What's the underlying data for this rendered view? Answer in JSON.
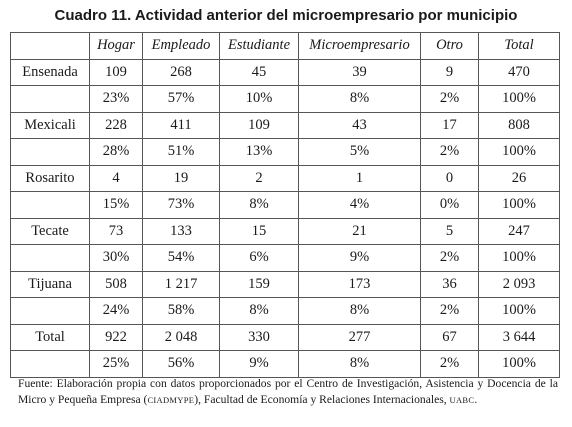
{
  "title": "Cuadro 11. Actividad anterior del microempresario por municipio",
  "table": {
    "headers": [
      "Hogar",
      "Empleado",
      "Estudiante",
      "Microempresario",
      "Otro",
      "Total"
    ],
    "rows": [
      {
        "municipio": "Ensenada",
        "counts": [
          "109",
          "268",
          "45",
          "39",
          "9",
          "470"
        ],
        "percents": [
          "23%",
          "57%",
          "10%",
          "8%",
          "2%",
          "100%"
        ]
      },
      {
        "municipio": "Mexicali",
        "counts": [
          "228",
          "411",
          "109",
          "43",
          "17",
          "808"
        ],
        "percents": [
          "28%",
          "51%",
          "13%",
          "5%",
          "2%",
          "100%"
        ]
      },
      {
        "municipio": "Rosarito",
        "counts": [
          "4",
          "19",
          "2",
          "1",
          "0",
          "26"
        ],
        "percents": [
          "15%",
          "73%",
          "8%",
          "4%",
          "0%",
          "100%"
        ]
      },
      {
        "municipio": "Tecate",
        "counts": [
          "73",
          "133",
          "15",
          "21",
          "5",
          "247"
        ],
        "percents": [
          "30%",
          "54%",
          "6%",
          "9%",
          "2%",
          "100%"
        ]
      },
      {
        "municipio": "Tijuana",
        "counts": [
          "508",
          "1 217",
          "159",
          "173",
          "36",
          "2 093"
        ],
        "percents": [
          "24%",
          "58%",
          "8%",
          "8%",
          "2%",
          "100%"
        ]
      },
      {
        "municipio": "Total",
        "counts": [
          "922",
          "2 048",
          "330",
          "277",
          "67",
          "3 644"
        ],
        "percents": [
          "25%",
          "56%",
          "9%",
          "8%",
          "2%",
          "100%"
        ]
      }
    ]
  },
  "footnote": {
    "part1": "Fuente: Elaboración propia con datos proporcionados por el Centro de Investigación, Asistencia y Docencia de la Micro y Pequeña Empresa (",
    "abbr1": "CIADMYPE",
    "part2": "), Facultad de Economía y Relaciones Internacionales, ",
    "abbr2": "UABC",
    "part3": "."
  }
}
